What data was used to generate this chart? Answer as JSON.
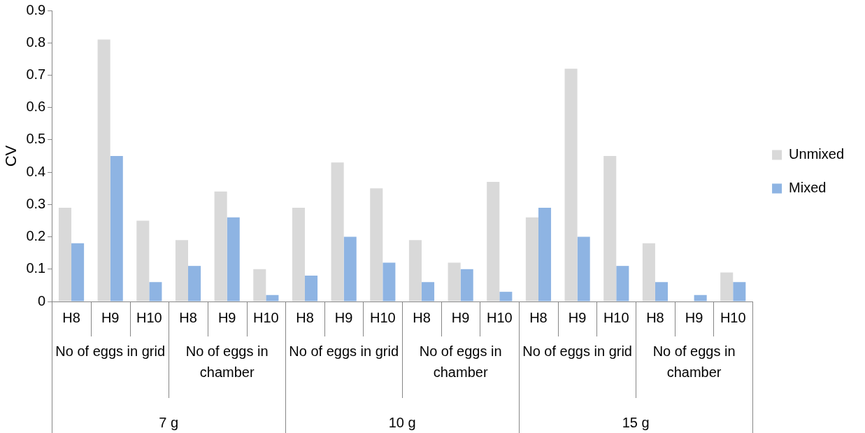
{
  "chart_data": {
    "type": "bar",
    "ylabel": "CV",
    "categories": [
      "H8",
      "H9",
      "H10",
      "H8",
      "H9",
      "H10",
      "H8",
      "H9",
      "H10",
      "H8",
      "H9",
      "H10",
      "H8",
      "H9",
      "H10",
      "H8",
      "H9",
      "H10"
    ],
    "series": [
      {
        "name": "Unmixed",
        "color": "#d9d9d9",
        "values": [
          0.29,
          0.81,
          0.25,
          0.19,
          0.34,
          0.1,
          0.29,
          0.43,
          0.35,
          0.19,
          0.12,
          0.37,
          0.26,
          0.72,
          0.45,
          0.18,
          0,
          0.09
        ]
      },
      {
        "name": "Mixed",
        "color": "#8eb4e3",
        "values": [
          0.18,
          0.45,
          0.06,
          0.11,
          0.26,
          0.02,
          0.08,
          0.2,
          0.12,
          0.06,
          0.1,
          0.03,
          0.29,
          0.2,
          0.11,
          0.06,
          0.02,
          0.06
        ]
      }
    ],
    "ylim": [
      0,
      0.9
    ],
    "yticks": [
      0,
      0.1,
      0.2,
      0.3,
      0.4,
      0.5,
      0.6,
      0.7,
      0.8,
      0.9
    ],
    "annotations": [
      "No of eggs in grid",
      "No of eggs in chamber",
      "No of eggs in grid",
      "No of eggs in chamber",
      "No of eggs in grid",
      "No of eggs in chamber",
      "7 g",
      "10 g",
      "15 g"
    ],
    "grid": false,
    "legend": "right"
  }
}
